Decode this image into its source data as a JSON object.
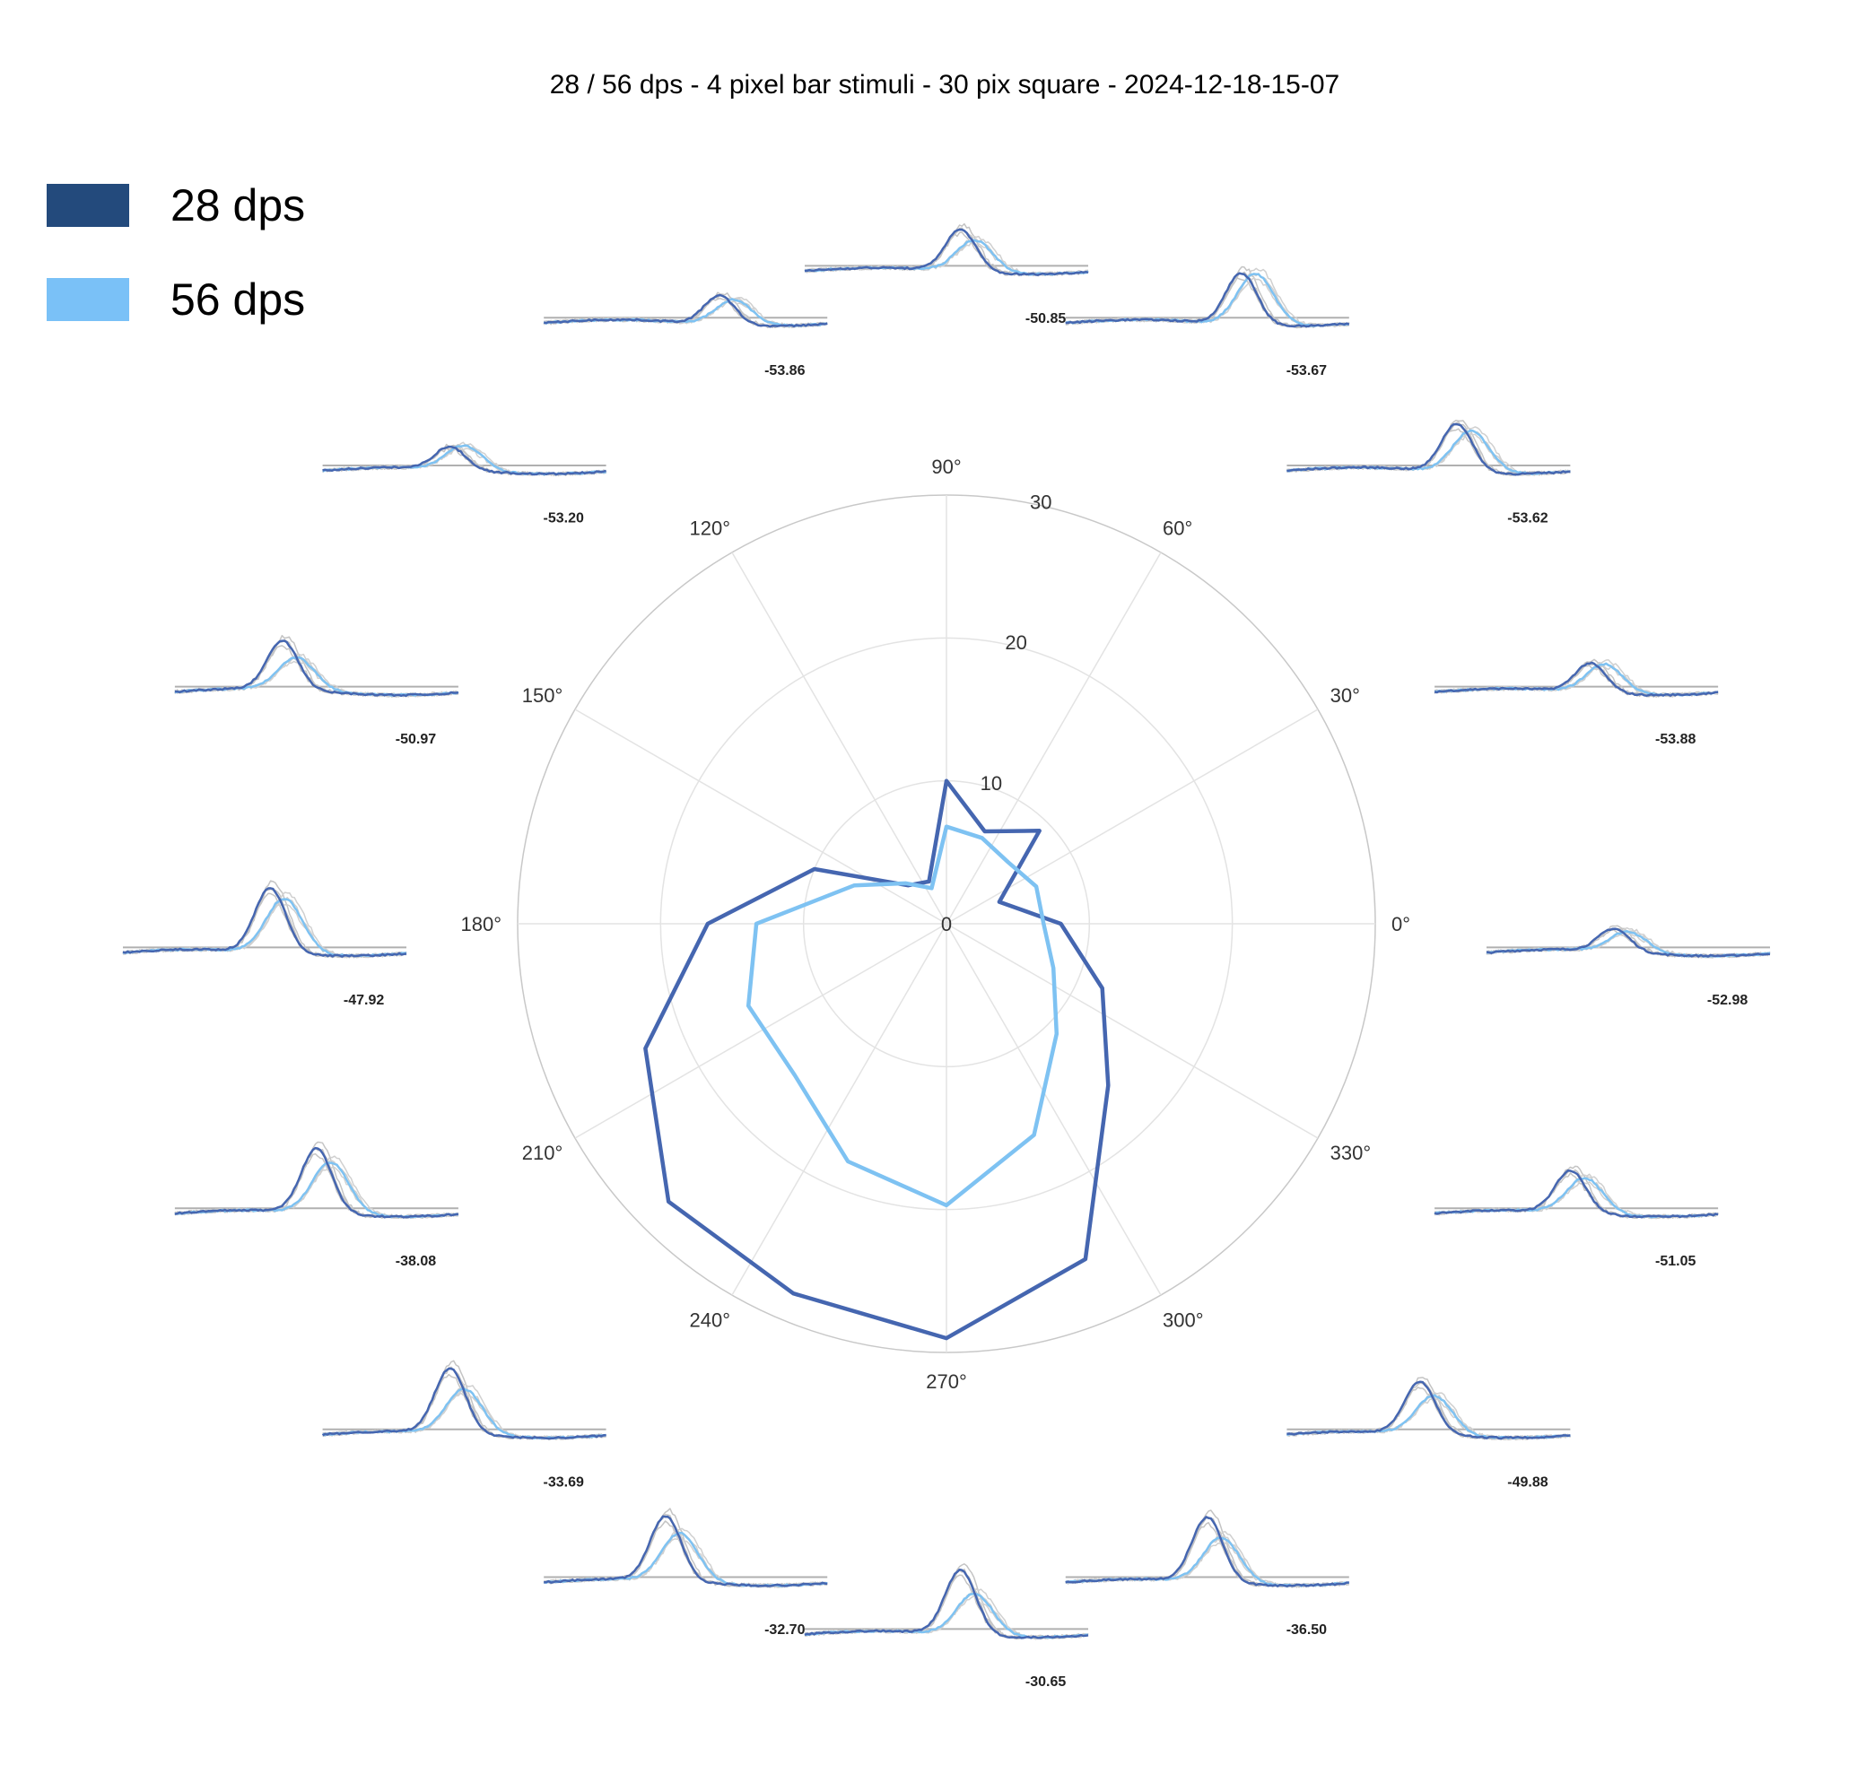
{
  "chart_data": {
    "type": "polar",
    "title": "28 / 56 dps - 4 pixel bar stimuli - 30 pix square - 2024-12-18-15-07",
    "grid": true,
    "legend_position": "top-left",
    "angular_ticks_deg": [
      0,
      30,
      60,
      90,
      120,
      150,
      180,
      210,
      240,
      270,
      300,
      330
    ],
    "angular_tick_labels": [
      "0°",
      "30°",
      "60°",
      "90°",
      "120°",
      "150°",
      "180°",
      "210°",
      "240°",
      "270°",
      "300°",
      "330°"
    ],
    "radial_ticks": [
      0,
      10,
      20,
      30
    ],
    "radial_tick_labels": [
      "0",
      "10",
      "20",
      "30"
    ],
    "rlim": [
      0,
      30
    ],
    "angles_deg": [
      0,
      22.5,
      45,
      67.5,
      90,
      112.5,
      135,
      157.5,
      180,
      202.5,
      225,
      247.5,
      270,
      292.5,
      315,
      337.5
    ],
    "series": [
      {
        "name": "28 dps",
        "color": "#4566b0",
        "legend_color": "#234a7c",
        "values": [
          8.0,
          4.0,
          9.2,
          7.0,
          10.0,
          3.2,
          3.8,
          10.0,
          16.7,
          22.8,
          27.5,
          28.0,
          29.0,
          25.4,
          16.0,
          11.8
        ]
      },
      {
        "name": "56 dps",
        "color": "#7ec2f2",
        "legend_color": "#7ac1f7",
        "values": [
          6.8,
          6.8,
          6.1,
          6.5,
          6.8,
          2.7,
          4.0,
          7.0,
          13.3,
          15.0,
          15.0,
          18.0,
          19.7,
          16.0,
          10.9,
          8.1
        ]
      }
    ],
    "trace_insets": [
      {
        "angle_deg": 0,
        "label": "-52.98",
        "amp28": 0.35,
        "amp56": 0.32,
        "peak_pos": 0.45
      },
      {
        "angle_deg": 22.5,
        "label": "-53.88",
        "amp28": 0.45,
        "amp56": 0.45,
        "peak_pos": 0.55
      },
      {
        "angle_deg": 45,
        "label": "-53.62",
        "amp28": 0.75,
        "amp56": 0.65,
        "peak_pos": 0.6
      },
      {
        "angle_deg": 67.5,
        "label": "-53.67",
        "amp28": 0.8,
        "amp56": 0.8,
        "peak_pos": 0.62
      },
      {
        "angle_deg": 90,
        "label": "-50.85",
        "amp28": 0.65,
        "amp56": 0.5,
        "peak_pos": 0.55
      },
      {
        "angle_deg": 112.5,
        "label": "-53.86",
        "amp28": 0.45,
        "amp56": 0.4,
        "peak_pos": 0.62
      },
      {
        "angle_deg": 135,
        "label": "-53.20",
        "amp28": 0.35,
        "amp56": 0.38,
        "peak_pos": 0.45
      },
      {
        "angle_deg": 157.5,
        "label": "-50.97",
        "amp28": 0.75,
        "amp56": 0.5,
        "peak_pos": 0.38
      },
      {
        "angle_deg": 180,
        "label": "-47.92",
        "amp28": 1.0,
        "amp56": 0.85,
        "peak_pos": 0.52
      },
      {
        "angle_deg": 202.5,
        "label": "-38.08",
        "amp28": 1.0,
        "amp56": 0.8,
        "peak_pos": 0.5
      },
      {
        "angle_deg": 225,
        "label": "-33.69",
        "amp28": 1.0,
        "amp56": 0.7,
        "peak_pos": 0.45
      },
      {
        "angle_deg": 247.5,
        "label": "-32.70",
        "amp28": 1.0,
        "amp56": 0.75,
        "peak_pos": 0.43
      },
      {
        "angle_deg": 270,
        "label": "-30.65",
        "amp28": 1.0,
        "amp56": 0.65,
        "peak_pos": 0.55
      },
      {
        "angle_deg": 292.5,
        "label": "-36.50",
        "amp28": 1.0,
        "amp56": 0.7,
        "peak_pos": 0.5
      },
      {
        "angle_deg": 315,
        "label": "-49.88",
        "amp28": 0.8,
        "amp56": 0.6,
        "peak_pos": 0.47
      },
      {
        "angle_deg": 337.5,
        "label": "-51.05",
        "amp28": 0.65,
        "amp56": 0.55,
        "peak_pos": 0.48
      }
    ]
  }
}
